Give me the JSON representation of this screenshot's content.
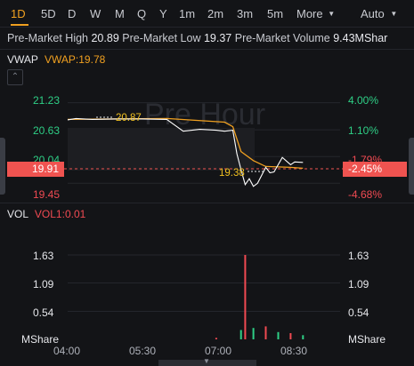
{
  "timeframes": [
    "1D",
    "5D",
    "D",
    "W",
    "M",
    "Q",
    "Y",
    "1m",
    "2m",
    "3m",
    "5m"
  ],
  "active_timeframe": "1D",
  "more_label": "More",
  "auto_label": "Auto",
  "stats": {
    "high_label": "Pre-Market High",
    "high_value": "20.89",
    "low_label": "Pre-Market Low",
    "low_value": "19.37",
    "volume_label": "Pre-Market Volume",
    "volume_value": "9.43MShar"
  },
  "price_panel": {
    "indicator_name": "VWAP",
    "indicator_value_text": "VWAP:19.78",
    "watermark": "Pre Hour",
    "left_prices": [
      "21.23",
      "20.63",
      "20.04",
      "19.45"
    ],
    "right_percents": [
      "4.00%",
      "1.10%",
      "-1.79%",
      "-4.68%"
    ],
    "current_price": "19.91",
    "current_percent": "-2.45%",
    "high_marker": "20.87",
    "low_marker": "19.38"
  },
  "volume_panel": {
    "indicator_name": "VOL",
    "indicator_value_text": "VOL1:0.01",
    "left_labels": [
      "1.63",
      "1.09",
      "0.54",
      "MShare"
    ],
    "right_labels": [
      "1.63",
      "1.09",
      "0.54",
      "MShare"
    ]
  },
  "x_axis": [
    "04:00",
    "05:30",
    "07:00",
    "08:30"
  ],
  "colors": {
    "accent": "#f0a020",
    "up": "#2ecf86",
    "down": "#f04a52",
    "price_line": "#ffffff",
    "vwap_line": "#f0a020",
    "background": "#131417"
  },
  "chart_data": {
    "type": "line",
    "x_range": [
      "04:00",
      "09:30"
    ],
    "ylim": [
      19.2,
      21.3
    ],
    "series": [
      {
        "name": "VWAP",
        "x": [
          "04:00",
          "06:00",
          "07:10",
          "07:20",
          "07:30",
          "07:45",
          "08:00",
          "08:30",
          "08:45"
        ],
        "values": [
          20.86,
          20.88,
          20.8,
          20.7,
          20.15,
          19.95,
          19.82,
          19.8,
          19.78
        ]
      }
    ],
    "price_x": [
      "04:00",
      "04:10",
      "04:30",
      "05:00",
      "05:30",
      "06:00",
      "06:20",
      "06:40",
      "07:00",
      "07:10",
      "07:20",
      "07:25",
      "07:30",
      "07:35",
      "07:40",
      "07:45",
      "07:50",
      "08:00",
      "08:05",
      "08:10",
      "08:20",
      "08:30",
      "08:35",
      "08:45"
    ],
    "price_values": [
      20.85,
      20.88,
      20.86,
      20.87,
      20.87,
      20.86,
      20.6,
      20.64,
      20.62,
      20.6,
      20.62,
      20.1,
      19.75,
      19.42,
      19.55,
      19.38,
      19.45,
      19.8,
      19.68,
      19.7,
      20.02,
      19.86,
      19.92,
      19.91
    ],
    "volume_x": [
      "07:00",
      "07:30",
      "07:35",
      "07:45",
      "08:00",
      "08:15",
      "08:30",
      "08:45"
    ],
    "volume_values": [
      0.03,
      0.18,
      1.63,
      0.22,
      0.25,
      0.14,
      0.12,
      0.08
    ]
  }
}
